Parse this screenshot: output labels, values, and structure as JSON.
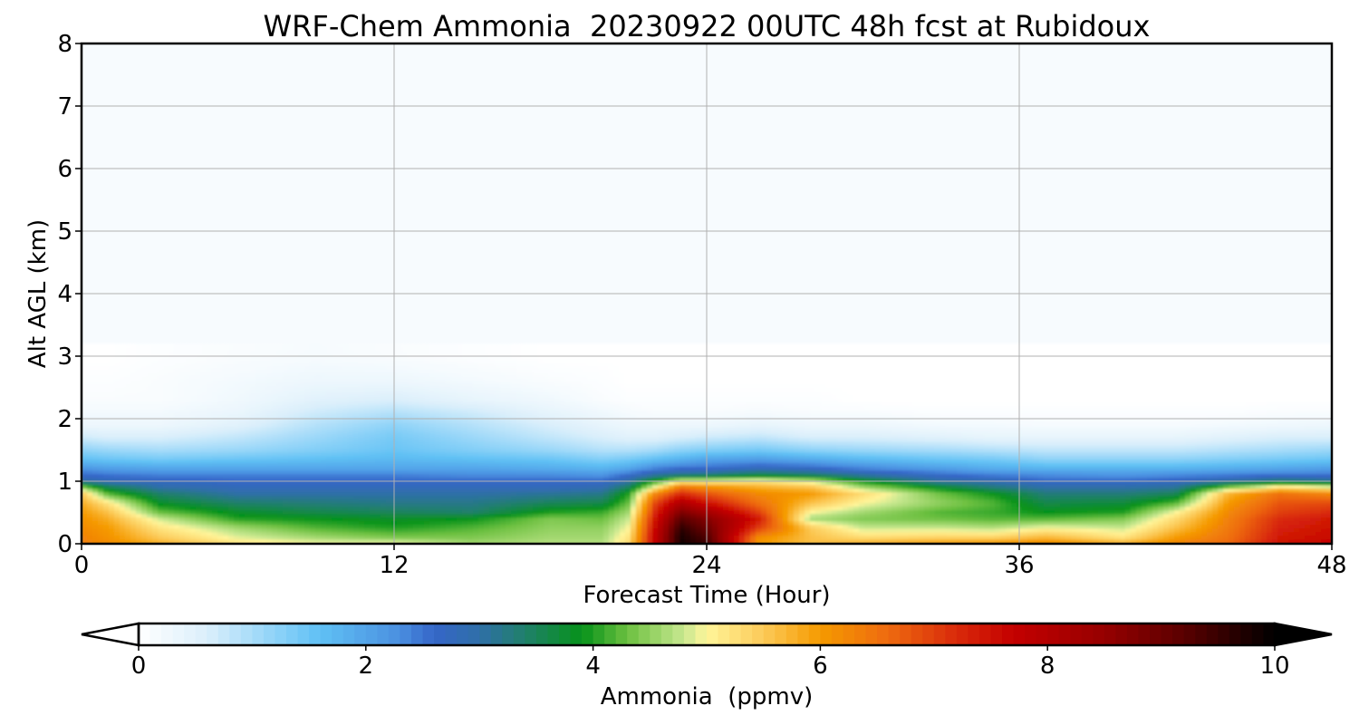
{
  "chart_data": {
    "type": "heatmap",
    "title": "WRF-Chem Ammonia  20230922 00UTC 48h fcst at Rubidoux",
    "xlabel": "Forecast Time (Hour)",
    "ylabel": "Alt AGL (km)",
    "xlim": [
      0,
      48
    ],
    "ylim": [
      0,
      8
    ],
    "x_ticks": [
      "0",
      "12",
      "24",
      "36",
      "48"
    ],
    "y_ticks": [
      "0",
      "1",
      "2",
      "3",
      "4",
      "5",
      "6",
      "7",
      "8"
    ],
    "grid": true,
    "colorbar": {
      "label": "Ammonia  (ppmv)",
      "min": 0,
      "max": 10,
      "ticks": [
        "0",
        "2",
        "4",
        "6",
        "8",
        "10"
      ],
      "extend": "both",
      "colormap": [
        {
          "v": 0.0,
          "c": "#ffffff"
        },
        {
          "v": 0.6,
          "c": "#dbeffb"
        },
        {
          "v": 1.2,
          "c": "#8fd3f8"
        },
        {
          "v": 1.6,
          "c": "#5fc0f4"
        },
        {
          "v": 2.3,
          "c": "#4a8fe0"
        },
        {
          "v": 2.6,
          "c": "#3566c8"
        },
        {
          "v": 3.0,
          "c": "#2f6fa8"
        },
        {
          "v": 3.4,
          "c": "#20806a"
        },
        {
          "v": 3.9,
          "c": "#06921a"
        },
        {
          "v": 4.3,
          "c": "#6cc040"
        },
        {
          "v": 4.8,
          "c": "#c8e890"
        },
        {
          "v": 5.0,
          "c": "#fff59a"
        },
        {
          "v": 5.5,
          "c": "#fcca58"
        },
        {
          "v": 6.0,
          "c": "#f59a00"
        },
        {
          "v": 6.6,
          "c": "#ee6a10"
        },
        {
          "v": 7.2,
          "c": "#d92a0a"
        },
        {
          "v": 7.7,
          "c": "#c40000"
        },
        {
          "v": 8.5,
          "c": "#960000"
        },
        {
          "v": 9.2,
          "c": "#5a0000"
        },
        {
          "v": 10.0,
          "c": "#000000"
        }
      ]
    },
    "profiles": {
      "alt_km": [
        0.0,
        0.1,
        0.25,
        0.4,
        0.5,
        0.65,
        0.8,
        0.9,
        1.0,
        1.1,
        1.2,
        1.35,
        1.5,
        1.7,
        1.9,
        2.1,
        2.3,
        2.6,
        3.0,
        8.0
      ],
      "columns": [
        {
          "hour": 0,
          "values": [
            6.3,
            6.3,
            6.2,
            6.1,
            6.0,
            5.8,
            5.5,
            4.5,
            3.0,
            2.6,
            2.2,
            1.6,
            1.2,
            0.7,
            0.3,
            0.2,
            0.1,
            0.05,
            0.0,
            0.0
          ]
        },
        {
          "hour": 1,
          "values": [
            6.2,
            6.1,
            6.0,
            5.8,
            5.6,
            5.2,
            4.2,
            3.6,
            2.8,
            2.5,
            2.1,
            1.5,
            1.1,
            0.6,
            0.3,
            0.2,
            0.1,
            0.05,
            0.0,
            0.0
          ]
        },
        {
          "hour": 3,
          "values": [
            5.8,
            5.5,
            5.2,
            4.8,
            4.3,
            3.8,
            3.4,
            3.0,
            2.7,
            2.4,
            2.0,
            1.4,
            1.0,
            0.6,
            0.3,
            0.2,
            0.1,
            0.1,
            0.05,
            0.0
          ]
        },
        {
          "hour": 6,
          "values": [
            5.2,
            4.9,
            4.6,
            4.0,
            3.8,
            3.4,
            3.0,
            2.8,
            2.6,
            2.4,
            2.0,
            1.5,
            1.1,
            0.8,
            0.5,
            0.35,
            0.25,
            0.2,
            0.1,
            0.0
          ]
        },
        {
          "hour": 9,
          "values": [
            5.0,
            4.6,
            4.2,
            3.9,
            3.6,
            3.3,
            3.0,
            2.8,
            2.6,
            2.4,
            2.0,
            1.6,
            1.3,
            1.1,
            0.9,
            0.7,
            0.5,
            0.3,
            0.15,
            0.0
          ]
        },
        {
          "hour": 12,
          "values": [
            5.0,
            4.4,
            4.0,
            3.8,
            3.5,
            3.2,
            3.0,
            2.8,
            2.6,
            2.4,
            2.0,
            1.7,
            1.5,
            1.4,
            1.2,
            0.9,
            0.6,
            0.3,
            0.1,
            0.0
          ]
        },
        {
          "hour": 15,
          "values": [
            4.6,
            4.4,
            4.2,
            3.9,
            3.4,
            3.2,
            3.0,
            2.8,
            2.6,
            2.3,
            2.0,
            1.6,
            1.3,
            1.1,
            0.9,
            0.7,
            0.4,
            0.2,
            0.05,
            0.0
          ]
        },
        {
          "hour": 18,
          "values": [
            4.7,
            4.6,
            4.5,
            4.4,
            4.0,
            3.5,
            3.1,
            2.8,
            2.6,
            2.3,
            1.9,
            1.5,
            1.1,
            0.8,
            0.6,
            0.4,
            0.25,
            0.1,
            0.0,
            0.0
          ]
        },
        {
          "hour": 20,
          "values": [
            4.7,
            4.6,
            4.5,
            4.3,
            4.1,
            3.6,
            3.2,
            2.9,
            2.6,
            2.2,
            1.8,
            1.3,
            0.9,
            0.6,
            0.4,
            0.25,
            0.1,
            0.05,
            0.0,
            0.0
          ]
        },
        {
          "hour": 21,
          "values": [
            5.3,
            5.2,
            5.0,
            4.8,
            4.6,
            4.3,
            4.0,
            3.5,
            3.0,
            2.6,
            2.0,
            1.4,
            0.9,
            0.5,
            0.3,
            0.15,
            0.05,
            0.0,
            0.0,
            0.0
          ]
        },
        {
          "hour": 22,
          "values": [
            7.7,
            7.7,
            7.6,
            7.4,
            7.2,
            6.9,
            6.2,
            5.0,
            4.0,
            3.0,
            2.4,
            1.6,
            1.0,
            0.5,
            0.3,
            0.1,
            0.05,
            0.0,
            0.0,
            0.0
          ]
        },
        {
          "hour": 23,
          "values": [
            9.8,
            9.8,
            9.6,
            9.2,
            8.8,
            8.1,
            7.2,
            6.5,
            5.0,
            3.2,
            2.6,
            1.8,
            1.2,
            0.6,
            0.3,
            0.1,
            0.05,
            0.0,
            0.0,
            0.0
          ]
        },
        {
          "hour": 24,
          "values": [
            9.5,
            9.3,
            9.0,
            8.7,
            8.3,
            7.5,
            6.8,
            6.2,
            5.0,
            3.3,
            2.6,
            2.0,
            1.3,
            0.7,
            0.3,
            0.1,
            0.05,
            0.0,
            0.0,
            0.0
          ]
        },
        {
          "hour": 26,
          "values": [
            6.0,
            6.2,
            7.0,
            7.4,
            7.0,
            6.5,
            6.2,
            5.8,
            5.2,
            3.6,
            2.8,
            2.1,
            1.4,
            0.8,
            0.4,
            0.15,
            0.05,
            0.0,
            0.0,
            0.0
          ]
        },
        {
          "hour": 28,
          "values": [
            5.6,
            5.6,
            5.5,
            4.6,
            5.0,
            5.6,
            6.0,
            5.6,
            4.8,
            3.4,
            2.7,
            1.9,
            1.2,
            0.6,
            0.3,
            0.1,
            0.05,
            0.0,
            0.0,
            0.0
          ]
        },
        {
          "hour": 30,
          "values": [
            5.8,
            5.3,
            4.8,
            4.4,
            4.6,
            5.0,
            5.3,
            4.6,
            3.9,
            3.0,
            2.4,
            1.7,
            1.1,
            0.6,
            0.3,
            0.1,
            0.0,
            0.0,
            0.0,
            0.0
          ]
        },
        {
          "hour": 33,
          "values": [
            6.0,
            5.4,
            4.8,
            4.3,
            4.2,
            4.5,
            4.3,
            3.8,
            3.0,
            2.6,
            2.1,
            1.5,
            1.0,
            0.5,
            0.2,
            0.05,
            0.0,
            0.0,
            0.0,
            0.0
          ]
        },
        {
          "hour": 35,
          "values": [
            6.1,
            5.4,
            4.7,
            4.2,
            4.1,
            4.2,
            3.9,
            3.3,
            2.9,
            2.4,
            1.9,
            1.4,
            0.9,
            0.4,
            0.2,
            0.05,
            0.0,
            0.0,
            0.0,
            0.0
          ]
        },
        {
          "hour": 37,
          "values": [
            6.3,
            5.7,
            5.0,
            4.2,
            3.9,
            3.6,
            3.3,
            3.0,
            2.6,
            2.3,
            1.8,
            1.2,
            0.8,
            0.4,
            0.15,
            0.05,
            0.0,
            0.0,
            0.0,
            0.0
          ]
        },
        {
          "hour": 40,
          "values": [
            5.8,
            5.2,
            4.8,
            4.4,
            4.0,
            3.7,
            3.3,
            3.0,
            2.6,
            2.2,
            1.8,
            1.2,
            0.8,
            0.4,
            0.15,
            0.05,
            0.0,
            0.0,
            0.0,
            0.0
          ]
        },
        {
          "hour": 42,
          "values": [
            6.3,
            6.0,
            5.6,
            5.3,
            5.0,
            4.2,
            3.5,
            3.1,
            2.7,
            2.3,
            1.8,
            1.2,
            0.8,
            0.4,
            0.15,
            0.05,
            0.0,
            0.0,
            0.0,
            0.0
          ]
        },
        {
          "hour": 44,
          "values": [
            6.6,
            6.5,
            6.4,
            6.3,
            6.2,
            6.0,
            5.7,
            4.4,
            3.0,
            2.4,
            1.9,
            1.3,
            0.9,
            0.5,
            0.2,
            0.05,
            0.0,
            0.0,
            0.0,
            0.0
          ]
        },
        {
          "hour": 46,
          "values": [
            7.5,
            7.4,
            7.3,
            7.2,
            7.0,
            6.8,
            6.5,
            5.3,
            3.4,
            2.5,
            2.0,
            1.4,
            1.0,
            0.6,
            0.25,
            0.1,
            0.0,
            0.0,
            0.0,
            0.0
          ]
        },
        {
          "hour": 48,
          "values": [
            7.7,
            7.6,
            7.5,
            7.4,
            7.2,
            6.9,
            6.2,
            5.0,
            3.2,
            2.5,
            2.1,
            1.5,
            1.1,
            0.6,
            0.3,
            0.1,
            0.0,
            0.0,
            0.0,
            0.0
          ]
        }
      ]
    }
  }
}
